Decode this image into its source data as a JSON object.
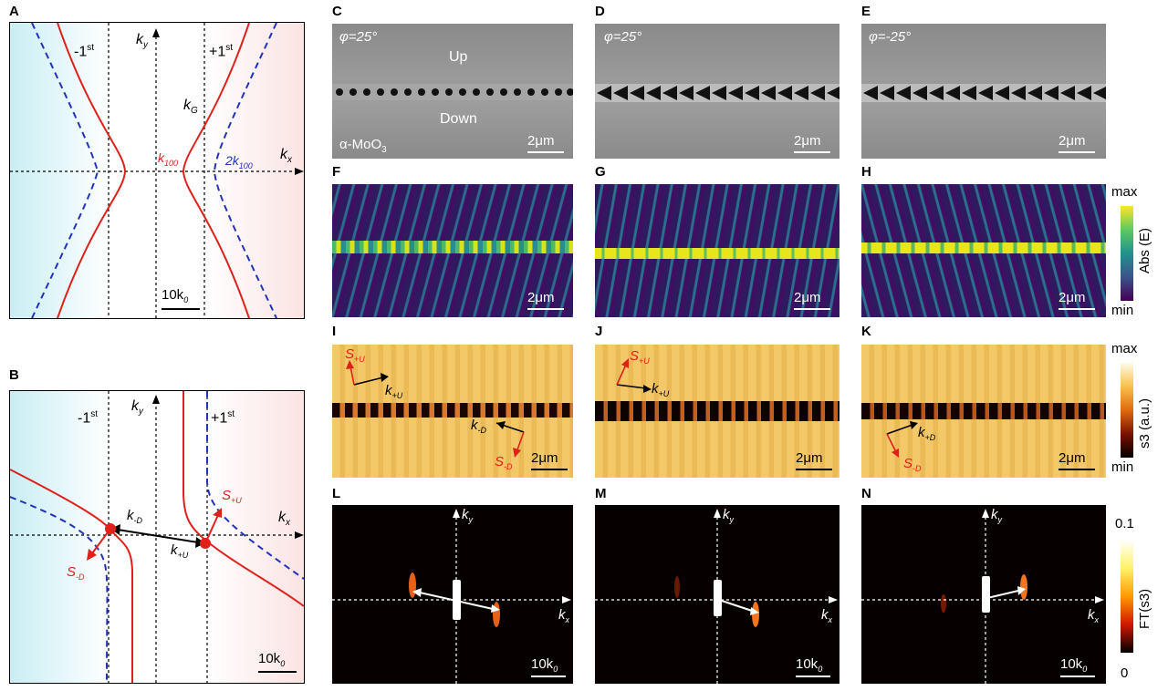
{
  "panel_labels": {
    "A": "A",
    "B": "B",
    "C": "C",
    "D": "D",
    "E": "E",
    "F": "F",
    "G": "G",
    "H": "H",
    "I": "I",
    "J": "J",
    "K": "K",
    "L": "L",
    "M": "M",
    "N": "N"
  },
  "panelA": {
    "minus_first": "-1",
    "plus_first": "+1",
    "order_sup": "st",
    "ky": "k",
    "ky_sub": "y",
    "kx": "k",
    "kx_sub": "x",
    "kG": "k",
    "kG_sub": "G",
    "k100": "k",
    "k100_sub": "100",
    "two_k100": "2k",
    "two_k100_sub": "100",
    "scale": "10k",
    "scale_sub": "0"
  },
  "panelB": {
    "minus_first": "-1",
    "plus_first": "+1",
    "order_sup": "st",
    "ky": "k",
    "ky_sub": "y",
    "kx": "k",
    "kx_sub": "x",
    "kmD": "k",
    "kmD_sub": "-D",
    "kpU": "k",
    "kpU_sub": "+U",
    "SpU": "S",
    "SpU_sub": "+U",
    "SmD": "S",
    "SmD_sub": "-D",
    "scale": "10k",
    "scale_sub": "0"
  },
  "sem": {
    "C_angle": "φ=25°",
    "D_angle": "φ=25°",
    "E_angle": "φ=-25°",
    "up": "Up",
    "down": "Down",
    "material": "α-MoO",
    "material_sub": "3",
    "scale": "2μm"
  },
  "sim_colorbar": {
    "max": "max",
    "min": "min",
    "label": "Abs (E)"
  },
  "snom": {
    "SpU": "S",
    "SpU_sub": "+U",
    "kpU": "k",
    "kpU_sub": "+U",
    "kmD": "k",
    "kmD_sub": "-D",
    "SmD": "S",
    "SmD_sub": "-D",
    "kpD": "k",
    "kpD_sub": "+D",
    "scale": "2μm"
  },
  "snom_colorbar": {
    "max": "max",
    "min": "min",
    "label": "s3 (a.u.)"
  },
  "ft": {
    "ky": "k",
    "ky_sub": "y",
    "kx": "k",
    "kx_sub": "x",
    "scale": "10k",
    "scale_sub": "0"
  },
  "ft_colorbar": {
    "max": "0.1",
    "min": "0",
    "label": "FT(s3)"
  },
  "colors": {
    "curve_red": "#e0201a",
    "dashed_blue": "#2233bb",
    "left_tint": "#c9eef4",
    "right_tint": "#fbe3e3"
  }
}
